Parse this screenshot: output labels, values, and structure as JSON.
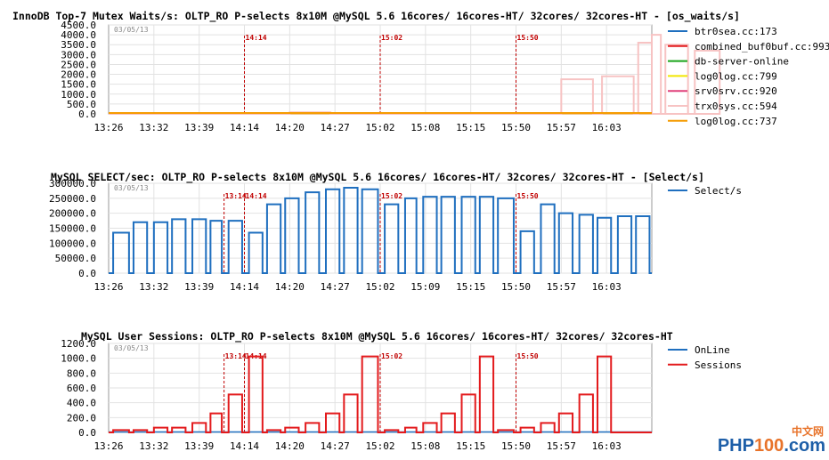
{
  "watermark": {
    "cn": "中文网",
    "part1": "PHP",
    "part2": "100",
    "part3": ".com"
  },
  "chart_data": [
    {
      "type": "line",
      "title": "InnoDB Top-7 Mutex Waits/s: OLTP_RO P-selects 8x10M @MySQL 5.6 16cores/ 16cores-HT/ 32cores/ 32cores-HT - [os_waits/s]",
      "date": "03/05/13",
      "ylim": [
        0,
        4500
      ],
      "yticks": [
        "0.0",
        "500.0",
        "1000.0",
        "1500.0",
        "2000.0",
        "2500.0",
        "3000.0",
        "3500.0",
        "4000.0",
        "4500.0"
      ],
      "xticks": [
        "13:26",
        "13:32",
        "13:39",
        "14:14",
        "14:20",
        "14:27",
        "15:02",
        "15:08",
        "15:15",
        "15:50",
        "15:57",
        "16:03"
      ],
      "markers": [
        {
          "label": "14:14",
          "x": 3
        },
        {
          "label": "15:02",
          "x": 6
        },
        {
          "label": "15:50",
          "x": 9
        }
      ],
      "series": [
        {
          "name": "btr0sea.cc:173",
          "color": "#1f6fbf",
          "segments": []
        },
        {
          "name": "combined_buf0buf.cc:993",
          "color": "#e31a1c",
          "segments": []
        },
        {
          "name": "db-server-online",
          "color": "#1aa31a",
          "segments": []
        },
        {
          "name": "log0log.cc:799",
          "color": "#f2e600",
          "segments": []
        },
        {
          "name": "srv0srv.cc:920",
          "color": "#e0407a",
          "segments": []
        },
        {
          "name": "trx0sys.cc:594",
          "color": "#f7c3c3",
          "segments": [
            [
              4.0,
              4.9,
              80
            ],
            [
              10.0,
              10.7,
              1750
            ],
            [
              10.9,
              11.6,
              1900
            ],
            [
              11.7,
              12.0,
              3600
            ],
            [
              12.0,
              12.2,
              4000
            ],
            [
              12.3,
              12.8,
              3500
            ],
            [
              12.95,
              13.5,
              3200
            ]
          ]
        },
        {
          "name": "log0log.cc:737",
          "color": "#f59b00",
          "segments": []
        }
      ]
    },
    {
      "type": "line",
      "title": "MySQL SELECT/sec: OLTP_RO P-selects 8x10M @MySQL 5.6 16cores/ 16cores-HT/ 32cores/ 32cores-HT - [Select/s]",
      "date": "03/05/13",
      "ylim": [
        0,
        300000
      ],
      "yticks": [
        "0.0",
        "50000.0",
        "100000.0",
        "150000.0",
        "200000.0",
        "250000.0",
        "300000.0"
      ],
      "xticks": [
        "13:26",
        "13:32",
        "13:39",
        "14:14",
        "14:20",
        "14:27",
        "15:02",
        "15:09",
        "15:15",
        "15:50",
        "15:57",
        "16:03"
      ],
      "markers": [
        {
          "label": "13:14",
          "x": 2.55
        },
        {
          "label": "14:14",
          "x": 3
        },
        {
          "label": "15:02",
          "x": 6
        },
        {
          "label": "15:50",
          "x": 9
        }
      ],
      "series": [
        {
          "name": "Select/s",
          "color": "#1f6fbf",
          "segments": [
            [
              0.1,
              0.45,
              135000
            ],
            [
              0.55,
              0.85,
              170000
            ],
            [
              1.0,
              1.3,
              170000
            ],
            [
              1.4,
              1.7,
              180000
            ],
            [
              1.85,
              2.15,
              180000
            ],
            [
              2.25,
              2.5,
              175000
            ],
            [
              2.65,
              2.95,
              175000
            ],
            [
              3.1,
              3.4,
              135000
            ],
            [
              3.5,
              3.8,
              230000
            ],
            [
              3.9,
              4.2,
              250000
            ],
            [
              4.35,
              4.65,
              270000
            ],
            [
              4.8,
              5.1,
              280000
            ],
            [
              5.2,
              5.5,
              285000
            ],
            [
              5.6,
              5.95,
              280000
            ],
            [
              6.1,
              6.4,
              230000
            ],
            [
              6.55,
              6.8,
              250000
            ],
            [
              6.95,
              7.25,
              255000
            ],
            [
              7.35,
              7.65,
              255000
            ],
            [
              7.8,
              8.1,
              255000
            ],
            [
              8.2,
              8.5,
              255000
            ],
            [
              8.6,
              8.95,
              250000
            ],
            [
              9.1,
              9.4,
              140000
            ],
            [
              9.55,
              9.85,
              230000
            ],
            [
              9.95,
              10.25,
              200000
            ],
            [
              10.4,
              10.7,
              195000
            ],
            [
              10.8,
              11.1,
              185000
            ],
            [
              11.25,
              11.55,
              190000
            ],
            [
              11.65,
              11.95,
              190000
            ]
          ]
        }
      ]
    },
    {
      "type": "line",
      "title": "MySQL User Sessions: OLTP_RO P-selects 8x10M @MySQL 5.6 16cores/ 16cores-HT/ 32cores/ 32cores-HT",
      "date": "03/05/13",
      "ylim": [
        0,
        1200
      ],
      "yticks": [
        "0.0",
        "200.0",
        "400.0",
        "600.0",
        "800.0",
        "1000.0",
        "1200.0"
      ],
      "xticks": [
        "13:26",
        "13:32",
        "13:39",
        "14:14",
        "14:20",
        "14:27",
        "15:02",
        "15:08",
        "15:15",
        "15:50",
        "15:57",
        "16:03"
      ],
      "markers": [
        {
          "label": "13:14",
          "x": 2.55
        },
        {
          "label": "14:14",
          "x": 3
        },
        {
          "label": "15:02",
          "x": 6
        },
        {
          "label": "15:50",
          "x": 9
        }
      ],
      "series": [
        {
          "name": "OnLine",
          "color": "#1f6fbf",
          "segments": []
        },
        {
          "name": "Sessions",
          "color": "#e31a1c",
          "segments": [
            [
              0.1,
              0.45,
              32
            ],
            [
              0.55,
              0.85,
              32
            ],
            [
              1.0,
              1.3,
              64
            ],
            [
              1.4,
              1.7,
              64
            ],
            [
              1.85,
              2.15,
              128
            ],
            [
              2.25,
              2.5,
              256
            ],
            [
              2.65,
              2.95,
              512
            ],
            [
              3.1,
              3.4,
              1024
            ],
            [
              3.5,
              3.8,
              32
            ],
            [
              3.9,
              4.2,
              64
            ],
            [
              4.35,
              4.65,
              128
            ],
            [
              4.8,
              5.1,
              256
            ],
            [
              5.2,
              5.5,
              512
            ],
            [
              5.6,
              5.95,
              1024
            ],
            [
              6.1,
              6.4,
              32
            ],
            [
              6.55,
              6.8,
              64
            ],
            [
              6.95,
              7.25,
              128
            ],
            [
              7.35,
              7.65,
              256
            ],
            [
              7.8,
              8.1,
              512
            ],
            [
              8.2,
              8.5,
              1024
            ],
            [
              8.6,
              8.95,
              32
            ],
            [
              9.1,
              9.4,
              64
            ],
            [
              9.55,
              9.85,
              128
            ],
            [
              9.95,
              10.25,
              256
            ],
            [
              10.4,
              10.7,
              512
            ],
            [
              10.8,
              11.1,
              1024
            ]
          ]
        }
      ]
    }
  ]
}
